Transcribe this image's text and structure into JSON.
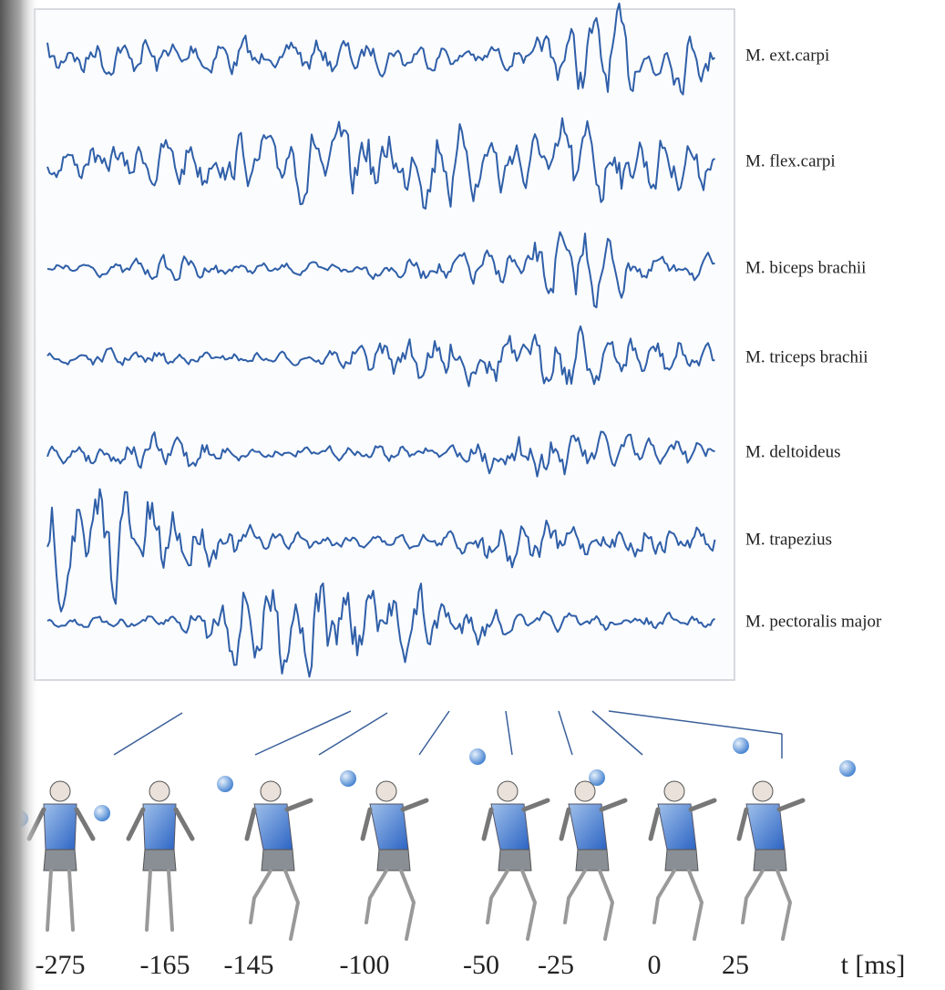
{
  "traces": [
    {
      "label": "M. ext.carpi"
    },
    {
      "label": "M. flex.carpi"
    },
    {
      "label": "M. biceps brachii"
    },
    {
      "label": "M. triceps brachii"
    },
    {
      "label": "M. deltoideus"
    },
    {
      "label": "M. trapezius"
    },
    {
      "label": "M. pectoralis major"
    }
  ],
  "time_axis": {
    "ticks": [
      -275,
      -165,
      -145,
      -100,
      -50,
      -25,
      0,
      25
    ],
    "label": "t [ms]"
  }
}
